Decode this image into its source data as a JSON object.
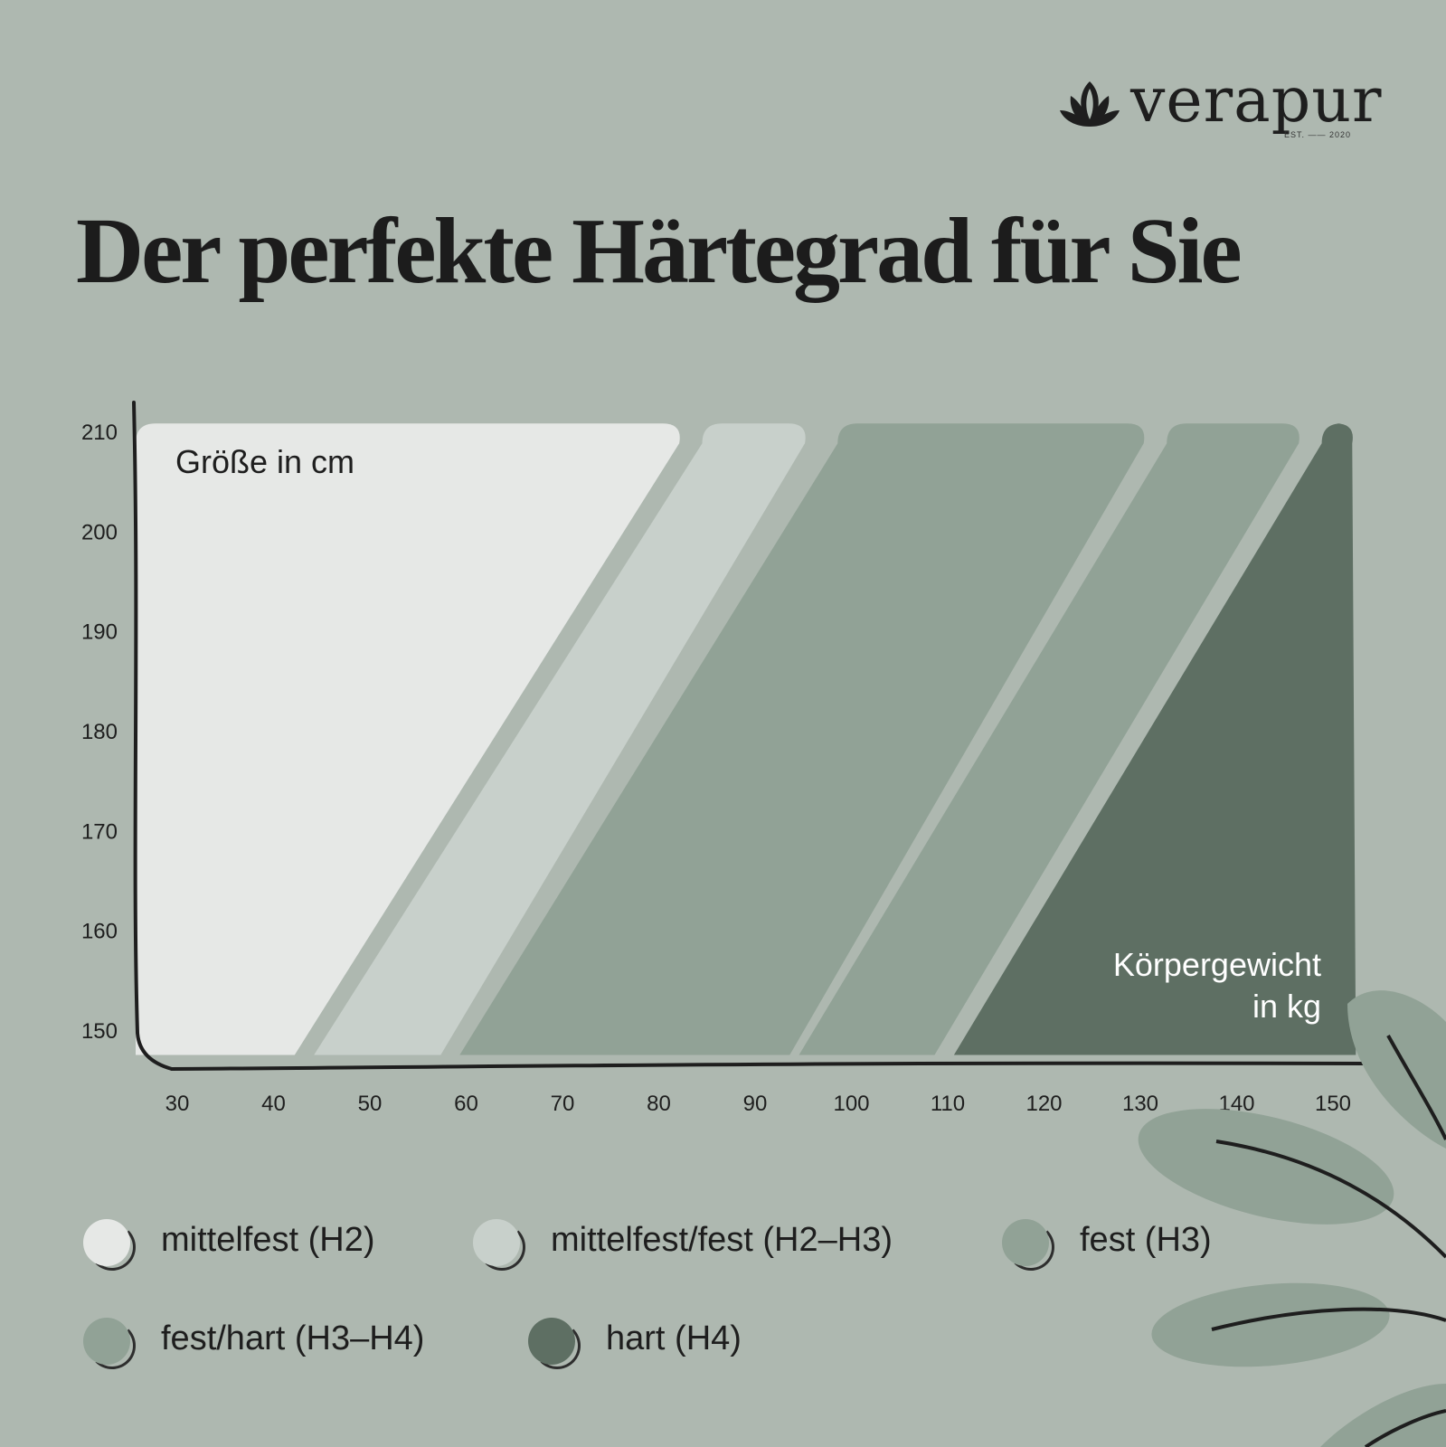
{
  "brand": {
    "name": "verapur",
    "est": "EST. —— 2020"
  },
  "title": "Der perfekte Härtegrad für Sie",
  "chart_data": {
    "type": "area",
    "title": "Der perfekte Härtegrad für Sie",
    "ylabel": "Größe in cm",
    "xlabel": "Körpergewicht in kg",
    "xlabel_lines": [
      "Körpergewicht",
      "in kg"
    ],
    "x_ticks": [
      30,
      40,
      50,
      60,
      70,
      80,
      90,
      100,
      110,
      120,
      130,
      140,
      150
    ],
    "y_ticks": [
      150,
      160,
      170,
      180,
      190,
      200,
      210
    ],
    "xlim": [
      26,
      153
    ],
    "ylim": [
      147,
      212
    ],
    "grid": false,
    "legend_position": "bottom",
    "zones": [
      {
        "name": "mittelfest (H2)",
        "color": "#e6e8e6",
        "weight_at_150cm": [
          26,
          44
        ],
        "weight_at_210cm": [
          26,
          82
        ]
      },
      {
        "name": "mittelfest/fest (H2–H3)",
        "color": "#c8d0cb",
        "weight_at_150cm": [
          46,
          59
        ],
        "weight_at_210cm": [
          84,
          95
        ]
      },
      {
        "name": "fest (H3)",
        "color": "#91a296",
        "weight_at_150cm": [
          61,
          95
        ],
        "weight_at_210cm": [
          98,
          130
        ]
      },
      {
        "name": "fest/hart (H3–H4)",
        "color": "#91a296",
        "weight_at_150cm": [
          96,
          110
        ],
        "weight_at_210cm": [
          132,
          146
        ]
      },
      {
        "name": "hart (H4)",
        "color": "#5e6f63",
        "weight_at_150cm": [
          112,
          152
        ],
        "weight_at_210cm": [
          148,
          152
        ]
      }
    ]
  },
  "colors": {
    "background": "#aeb8b0",
    "axis": "#1e1e1e",
    "leaf": "#91a296"
  }
}
